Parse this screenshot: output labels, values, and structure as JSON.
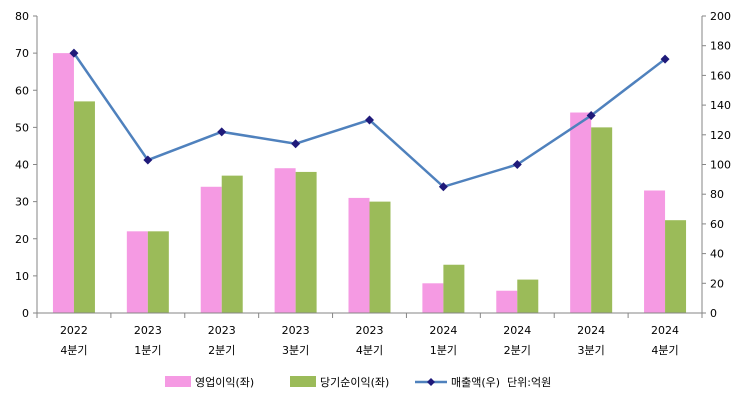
{
  "chart_data": {
    "type": "bar+line",
    "title": "",
    "categories": [
      {
        "year": "2022",
        "quarter": "4분기"
      },
      {
        "year": "2023",
        "quarter": "1분기"
      },
      {
        "year": "2023",
        "quarter": "2분기"
      },
      {
        "year": "2023",
        "quarter": "3분기"
      },
      {
        "year": "2023",
        "quarter": "4분기"
      },
      {
        "year": "2024",
        "quarter": "1분기"
      },
      {
        "year": "2024",
        "quarter": "2분기"
      },
      {
        "year": "2024",
        "quarter": "3분기"
      },
      {
        "year": "2024",
        "quarter": "4분기"
      }
    ],
    "series": [
      {
        "name": "영업이익(좌)",
        "kind": "bar",
        "axis": "left",
        "color": "#f59ae3",
        "values": [
          70,
          22,
          34,
          39,
          31,
          8,
          6,
          54,
          33
        ]
      },
      {
        "name": "당기순이익(좌)",
        "kind": "bar",
        "axis": "left",
        "color": "#9bbb59",
        "values": [
          57,
          22,
          37,
          38,
          30,
          13,
          9,
          50,
          25
        ]
      },
      {
        "name": "매출액(우)",
        "kind": "line",
        "axis": "right",
        "color": "#4f81bd",
        "marker_color": "#1f1a7a",
        "values": [
          175,
          103,
          122,
          114,
          130,
          85,
          100,
          133,
          171
        ]
      }
    ],
    "left_axis": {
      "min": 0,
      "max": 80,
      "step": 10
    },
    "right_axis": {
      "min": 0,
      "max": 200,
      "step": 20
    },
    "unit_note": "단위:억원",
    "legend_position": "bottom"
  }
}
